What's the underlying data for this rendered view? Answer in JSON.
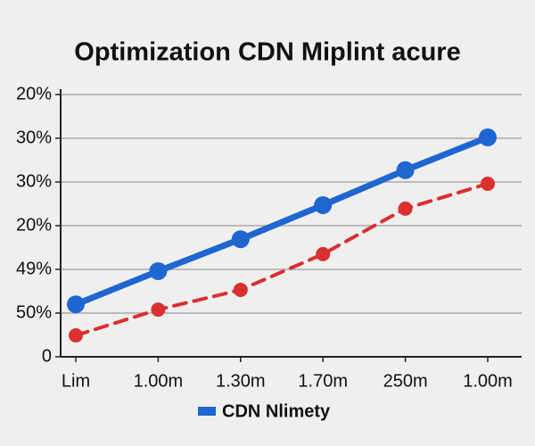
{
  "chart_data": {
    "type": "line",
    "title": "Optimization CDN Miplint acure",
    "categories": [
      "Lim",
      "1.00m",
      "1.30m",
      "1.70m",
      "250m",
      "1.00m"
    ],
    "series": [
      {
        "name": "CDN Nlimety",
        "color": "#1f66d1",
        "values": [
          12.0,
          19.6,
          26.9,
          34.7,
          42.7,
          50.2
        ]
      },
      {
        "color": "#d93030",
        "dashed": true,
        "values": [
          4.9,
          10.8,
          15.3,
          23.5,
          33.9,
          39.6
        ]
      }
    ],
    "ylim": [
      0,
      60
    ],
    "yticks": [
      0,
      {
        "value": 10,
        "label": "50%"
      },
      {
        "value": 20,
        "label": "49%"
      },
      {
        "value": 30,
        "label": "20%"
      },
      {
        "value": 40,
        "label": "30%"
      },
      {
        "value": 50,
        "label": "30%"
      },
      {
        "value": 60,
        "label": "20%"
      }
    ],
    "grid": true,
    "legend": "bottom"
  }
}
